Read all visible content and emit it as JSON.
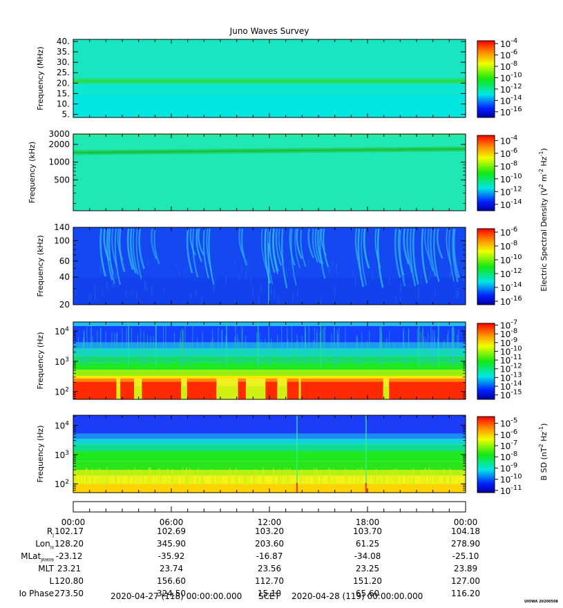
{
  "chart_data": {
    "type": "heatmap",
    "title": "Juno Waves Survey",
    "colors": {
      "low": "#0010c8",
      "mid_low": "#00e6e6",
      "mid": "#1ee81e",
      "mid_high": "#ffff00",
      "high": "#ff0000"
    },
    "panels": [
      {
        "id": "hfr-mhz",
        "ylabel": "Frequency (MHz)",
        "yscale": "linear",
        "ylim": [
          3.5,
          41
        ],
        "yticks": [
          "5.",
          "10.",
          "15.",
          "20.",
          "25.",
          "30.",
          "35.",
          "40."
        ],
        "ytick_values": [
          5,
          10,
          15,
          20,
          25,
          30,
          35,
          40
        ],
        "colorbar": {
          "labels": [
            "-4",
            "-6",
            "-8",
            "-10",
            "-12",
            "-14",
            "-16"
          ],
          "exponents": [
            -4,
            -6,
            -8,
            -10,
            -12,
            -14,
            -16
          ],
          "range": [
            -17,
            -3.5
          ]
        }
      },
      {
        "id": "hfr-khz",
        "ylabel": "Frequency (kHz)",
        "yscale": "log",
        "ylim": [
          150,
          3000
        ],
        "yticks": [
          "3000",
          "2000",
          "1000",
          "500"
        ],
        "ytick_values": [
          3000,
          2000,
          1000,
          500
        ],
        "colorbar": {
          "labels": [
            "-4",
            "-6",
            "-8",
            "-10",
            "-12",
            "-14"
          ],
          "exponents": [
            -4,
            -6,
            -8,
            -10,
            -12,
            -14
          ],
          "range": [
            -15,
            -3.2
          ]
        }
      },
      {
        "id": "lfr-khz",
        "ylabel": "Frequency (kHz)",
        "yscale": "log",
        "ylim": [
          20,
          140
        ],
        "yticks": [
          "140",
          "100",
          "60",
          "40",
          "20"
        ],
        "ytick_values": [
          140,
          100,
          60,
          40,
          20
        ],
        "colorbar": {
          "labels": [
            "-6",
            "-8",
            "-10",
            "-12",
            "-14",
            "-16"
          ],
          "exponents": [
            -6,
            -8,
            -10,
            -12,
            -14,
            -16
          ],
          "range": [
            -16.5,
            -5.5
          ]
        }
      },
      {
        "id": "lfr-hz",
        "ylabel": "Frequency (Hz)",
        "yscale": "log",
        "ylim": [
          55,
          20000
        ],
        "yticks": [
          "4",
          "3",
          "2"
        ],
        "ytick_values": [
          10000,
          1000,
          100
        ],
        "colorbar": {
          "labels": [
            "-7",
            "-8",
            "-9",
            "-10",
            "-11",
            "-12",
            "-13",
            "-14",
            "-15"
          ],
          "exponents": [
            -7,
            -8,
            -9,
            -10,
            -11,
            -12,
            -13,
            -14,
            -15
          ],
          "range": [
            -15.5,
            -6.8
          ]
        }
      },
      {
        "id": "bsd-hz",
        "ylabel": "Frequency (Hz)",
        "yscale": "log",
        "ylim": [
          50,
          22000
        ],
        "yticks": [
          "4",
          "3",
          "2"
        ],
        "ytick_values": [
          10000,
          1000,
          100
        ],
        "colorbar": {
          "labels": [
            "-5",
            "-6",
            "-7",
            "-8",
            "-9",
            "-10",
            "-11"
          ],
          "exponents": [
            -5,
            -6,
            -7,
            -8,
            -9,
            -10,
            -11
          ],
          "range": [
            -11.2,
            -4.4
          ]
        }
      }
    ],
    "colorbar_titles": {
      "electric": "Electric Spectral Density (V",
      "electric_parts": [
        "Electric Spectral Density (V",
        "2",
        " m",
        "-2",
        " Hz",
        "-1",
        ")"
      ],
      "magnetic_parts": [
        "B SD (nT",
        "2",
        " Hz",
        "-1",
        ")"
      ]
    },
    "time_axis": {
      "labels": [
        "00:00",
        "06:00",
        "12:00",
        "18:00",
        "00:00"
      ],
      "hours": [
        0,
        6,
        12,
        18,
        24
      ],
      "range_hours": [
        0,
        24
      ]
    },
    "ephemeris": [
      {
        "label": "R",
        "sub": "J",
        "values": [
          "102.17",
          "102.69",
          "103.20",
          "103.70",
          "104.18"
        ]
      },
      {
        "label": "Lon",
        "sub": "III",
        "values": [
          "128.20",
          "345.90",
          "203.60",
          "61.25",
          "278.90"
        ]
      },
      {
        "label": "MLat",
        "sub": "JRM09",
        "values": [
          "-23.12",
          "-35.92",
          "-16.87",
          "-34.08",
          "-25.10"
        ]
      },
      {
        "label": "MLT",
        "sub": "",
        "values": [
          "23.21",
          "23.74",
          "23.56",
          "23.25",
          "23.89"
        ]
      },
      {
        "label": "L",
        "sub": "",
        "values": [
          "120.80",
          "156.60",
          "112.70",
          "151.20",
          "127.00"
        ]
      },
      {
        "label": "Io Phase",
        "sub": "",
        "values": [
          "273.50",
          "324.50",
          "15.10",
          "65.60",
          "116.20"
        ]
      }
    ],
    "footer": {
      "start": "2020-04-27 (118) 00:00:00.000",
      "mid": "SCET",
      "end": "2020-04-28 (119) 00:00:00.000"
    },
    "credit": "UIOWA 20200508"
  }
}
